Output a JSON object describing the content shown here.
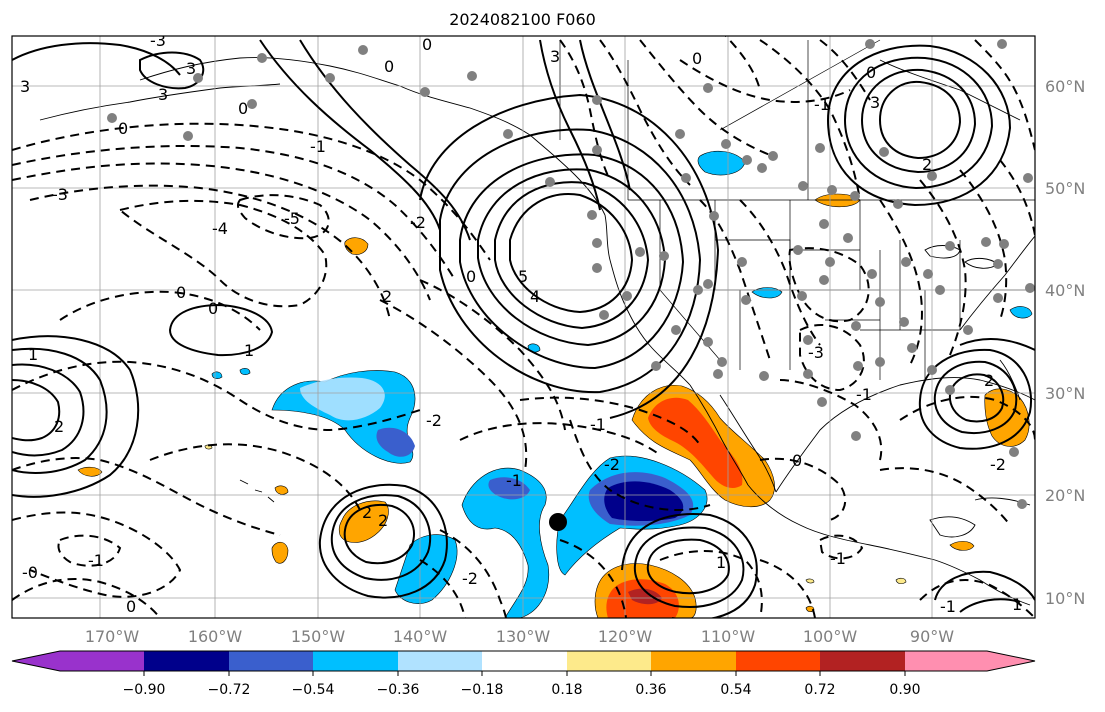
{
  "title": "2024082100 F060",
  "latitude_labels": [
    "60°N",
    "50°N",
    "40°N",
    "30°N",
    "20°N",
    "10°N"
  ],
  "longitude_labels": [
    "170°W",
    "160°W",
    "150°W",
    "140°W",
    "130°W",
    "120°W",
    "110°W",
    "100°W",
    "90°W"
  ],
  "colorbar": {
    "colors": [
      "#9932cc",
      "#00008b",
      "#3a5fcd",
      "#00bfff",
      "#b0e2ff",
      "#ffffff",
      "#fdea8b",
      "#ffa500",
      "#ff4500",
      "#b22222",
      "#ff8fb0"
    ],
    "tick_labels": [
      "−0.90",
      "−0.72",
      "−0.54",
      "−0.36",
      "−0.18",
      "0.18",
      "0.36",
      "0.54",
      "0.72",
      "0.90"
    ]
  },
  "contour_labels": [
    "-3",
    "3",
    "3",
    "0",
    "0",
    "0",
    "0",
    "3",
    "-1",
    "-3",
    "-4",
    "-5",
    "-2",
    "0",
    "0",
    "1",
    "1",
    "2",
    "2",
    "0",
    "-2",
    "-1",
    "5",
    "4",
    "-1",
    "-2",
    "-2",
    "2",
    "2",
    "1",
    "-1",
    "-1",
    "2",
    "0",
    "0",
    "1",
    "-1",
    "-1",
    "-3",
    "3",
    "2",
    "0",
    "-1",
    "-2",
    "3",
    "0",
    "-0"
  ],
  "colors": {
    "grid": "#a0a0a0",
    "contour": "#000000",
    "station": "#808080",
    "marker": "#000000"
  }
}
